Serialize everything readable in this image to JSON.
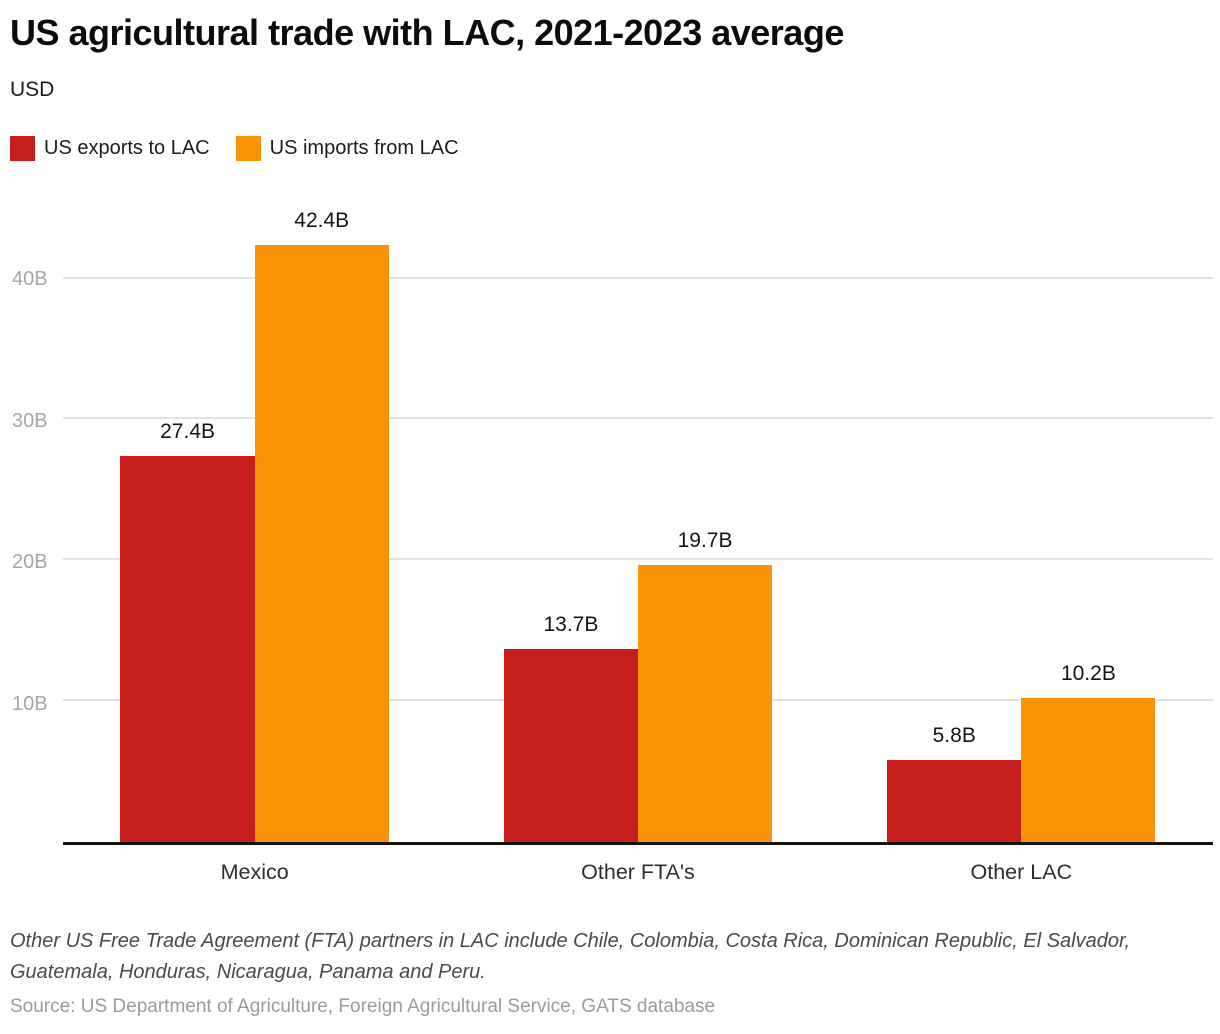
{
  "header": {
    "title": "US agricultural trade with LAC, 2021-2023 average",
    "subtitle": "USD"
  },
  "legend": [
    {
      "label": "US exports to LAC",
      "color": "#c51e1c"
    },
    {
      "label": "US imports from LAC",
      "color": "#f89406"
    }
  ],
  "chart_data": {
    "type": "bar",
    "title": "US agricultural trade with LAC, 2021-2023 average",
    "unit_label": "USD",
    "categories": [
      "Mexico",
      "Other FTA's",
      "Other LAC"
    ],
    "series": [
      {
        "name": "US exports to LAC",
        "color": "#c51e1c",
        "values": [
          27.4,
          13.7,
          5.8
        ],
        "value_labels": [
          "27.4B",
          "13.7B",
          "5.8B"
        ]
      },
      {
        "name": "US imports from LAC",
        "color": "#f89406",
        "values": [
          42.4,
          19.7,
          10.2
        ],
        "value_labels": [
          "42.4B",
          "19.7B",
          "10.2B"
        ]
      }
    ],
    "y_ticks": [
      {
        "value": 10,
        "label": "10B"
      },
      {
        "value": 20,
        "label": "20B"
      },
      {
        "value": 30,
        "label": "30B"
      },
      {
        "value": 40,
        "label": "40B"
      }
    ],
    "ylim": [
      0,
      47
    ],
    "grid": true,
    "legend_position": "top"
  },
  "footer": {
    "note": "Other US Free Trade Agreement (FTA) partners in LAC include Chile, Colombia, Costa Rica, Dominican Republic, El Salvador, Guatemala, Honduras, Nicaragua, Panama and Peru.",
    "source": "Source: US Department of Agriculture, Foreign Agricultural Service, GATS database"
  }
}
